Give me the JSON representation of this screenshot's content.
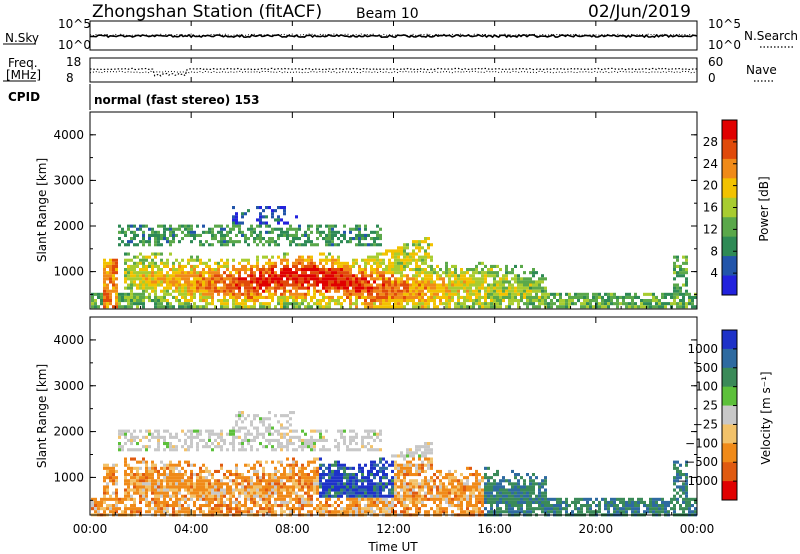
{
  "header": {
    "title": "Zhongshan Station (fitACF)",
    "beam": "Beam 10",
    "date": "02/Jun/2019"
  },
  "small_panels": {
    "nsky_label": "N.Sky",
    "nsky_ticks": [
      "10^5",
      "10^0"
    ],
    "nsearch_label": "N.Search",
    "nsearch_ticks": [
      "10^5",
      "10^0"
    ],
    "freq_label_1": "Freq.",
    "freq_label_2": "[MHz]",
    "freq_ticks": [
      "18",
      "8"
    ],
    "nave_label": "Nave",
    "nave_ticks": [
      "60",
      "0"
    ],
    "cpid_label": "CPID",
    "cpid_text": "normal (fast stereo) 153"
  },
  "chart_data": [
    {
      "type": "heatmap",
      "ylabel": "Slant Range [km]",
      "yticks": [
        "1000",
        "2000",
        "3000",
        "4000"
      ],
      "ylim": [
        180,
        4500
      ],
      "xlim_hours": [
        0,
        24
      ],
      "colorbar_label": "Power [dB]",
      "colorbar_ticks": [
        "4",
        "8",
        "12",
        "16",
        "20",
        "24",
        "28"
      ],
      "colorbar_range": [
        0,
        32
      ],
      "colors": [
        "#2222dd",
        "#2255aa",
        "#2e8a55",
        "#5aa84a",
        "#a8cc30",
        "#f2c200",
        "#f08a18",
        "#e04a0a",
        "#e00000"
      ]
    },
    {
      "type": "heatmap",
      "ylabel": "Slant Range [km]",
      "yticks": [
        "1000",
        "2000",
        "3000",
        "4000"
      ],
      "ylim": [
        180,
        4500
      ],
      "xlim_hours": [
        0,
        24
      ],
      "colorbar_label": "Velocity [m s⁻¹]",
      "colorbar_ticks": [
        "1000",
        "500",
        "100",
        "25",
        "−25",
        "−100",
        "−500",
        "−1000"
      ],
      "colors": [
        "#1e32c8",
        "#2e6aa0",
        "#3a8a58",
        "#5cc03a",
        "#c8c8c8",
        "#f2c26a",
        "#f08a18",
        "#e05a10",
        "#e00000"
      ]
    }
  ],
  "xaxis": {
    "ticks": [
      "00:00",
      "04:00",
      "08:00",
      "12:00",
      "16:00",
      "20:00",
      "00:00"
    ],
    "label": "Time UT"
  }
}
